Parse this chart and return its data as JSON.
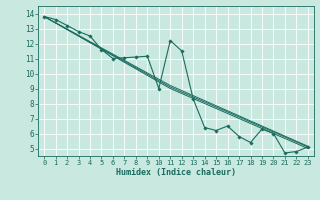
{
  "xlabel": "Humidex (Indice chaleur)",
  "bg_color": "#c8e8e0",
  "line_color": "#1a6b5e",
  "grid_color": "#ffffff",
  "xlim": [
    -0.5,
    23.5
  ],
  "ylim": [
    4.5,
    14.5
  ],
  "xticks": [
    0,
    1,
    2,
    3,
    4,
    5,
    6,
    7,
    8,
    9,
    10,
    11,
    12,
    13,
    14,
    15,
    16,
    17,
    18,
    19,
    20,
    21,
    22,
    23
  ],
  "yticks": [
    5,
    6,
    7,
    8,
    9,
    10,
    11,
    12,
    13,
    14
  ],
  "main_line": [
    [
      0,
      13.8
    ],
    [
      1,
      13.6
    ],
    [
      2,
      13.2
    ],
    [
      3,
      12.8
    ],
    [
      4,
      12.5
    ],
    [
      5,
      11.6
    ],
    [
      6,
      11.0
    ],
    [
      7,
      11.05
    ],
    [
      8,
      11.1
    ],
    [
      9,
      11.15
    ],
    [
      10,
      9.0
    ],
    [
      11,
      12.2
    ],
    [
      12,
      11.5
    ],
    [
      13,
      8.3
    ],
    [
      14,
      6.4
    ],
    [
      15,
      6.2
    ],
    [
      16,
      6.5
    ],
    [
      17,
      5.8
    ],
    [
      18,
      5.4
    ],
    [
      19,
      6.3
    ],
    [
      20,
      6.0
    ],
    [
      21,
      4.7
    ],
    [
      22,
      4.8
    ],
    [
      23,
      5.1
    ]
  ],
  "trend_lines": [
    [
      [
        0,
        13.8
      ],
      [
        11,
        9.0
      ],
      [
        23,
        5.0
      ]
    ],
    [
      [
        0,
        13.8
      ],
      [
        11,
        9.1
      ],
      [
        23,
        5.1
      ]
    ],
    [
      [
        0,
        13.8
      ],
      [
        11,
        9.2
      ],
      [
        23,
        5.15
      ]
    ]
  ]
}
